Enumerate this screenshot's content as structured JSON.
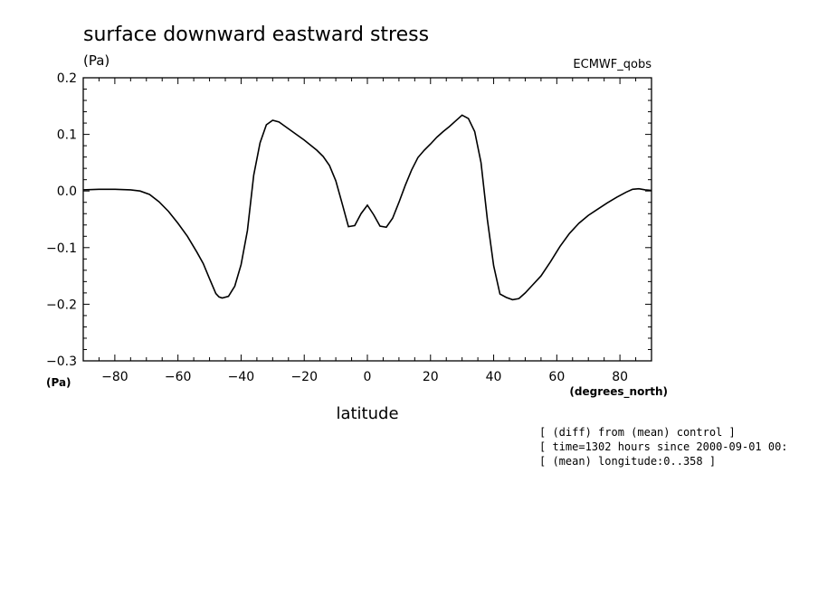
{
  "chart_data": {
    "type": "line",
    "title": "surface downward eastward stress",
    "ylabel_top": "(Pa)",
    "ylabel_bottom": "(Pa)",
    "source_label": "ECMWF_qobs",
    "xlabel": "latitude",
    "xunits": "(degrees_north)",
    "xlim": [
      -90,
      90
    ],
    "ylim": [
      -0.3,
      0.2
    ],
    "xticks": [
      -80,
      -60,
      -40,
      -20,
      0,
      20,
      40,
      60,
      80
    ],
    "xtick_labels": [
      "−80",
      "−60",
      "−40",
      "−20",
      "0",
      "20",
      "40",
      "60",
      "80"
    ],
    "yticks": [
      -0.3,
      -0.2,
      -0.1,
      0.0,
      0.1,
      0.2
    ],
    "ytick_labels": [
      "−0.3",
      "−0.2",
      "−0.1",
      "0.0",
      "0.1",
      "0.2"
    ],
    "series": [
      {
        "x": [
          -90,
          -85,
          -80,
          -75,
          -72,
          -69,
          -66,
          -63,
          -60,
          -57,
          -54,
          -52,
          -50,
          -48,
          -47,
          -46,
          -44,
          -42,
          -40,
          -38,
          -36,
          -34,
          -32,
          -30,
          -28,
          -26,
          -24,
          -22,
          -20,
          -18,
          -16,
          -14,
          -12,
          -10,
          -8,
          -6,
          -4,
          -2,
          0,
          2,
          4,
          6,
          8,
          10,
          12,
          14,
          16,
          18,
          20,
          22,
          24,
          26,
          28,
          30,
          32,
          34,
          36,
          38,
          40,
          42,
          44,
          46,
          48,
          50,
          52,
          55,
          58,
          61,
          64,
          67,
          70,
          73,
          76,
          79,
          82,
          84,
          86,
          88,
          90
        ],
        "y": [
          0.002,
          0.003,
          0.003,
          0.002,
          0.0,
          -0.006,
          -0.019,
          -0.036,
          -0.057,
          -0.08,
          -0.108,
          -0.128,
          -0.155,
          -0.181,
          -0.187,
          -0.189,
          -0.186,
          -0.168,
          -0.13,
          -0.07,
          0.028,
          0.085,
          0.117,
          0.125,
          0.122,
          0.114,
          0.106,
          0.098,
          0.09,
          0.081,
          0.072,
          0.061,
          0.045,
          0.018,
          -0.022,
          -0.063,
          -0.061,
          -0.04,
          -0.025,
          -0.042,
          -0.062,
          -0.064,
          -0.048,
          -0.02,
          0.01,
          0.037,
          0.059,
          0.072,
          0.083,
          0.095,
          0.105,
          0.114,
          0.124,
          0.134,
          0.128,
          0.105,
          0.05,
          -0.05,
          -0.132,
          -0.182,
          -0.188,
          -0.192,
          -0.19,
          -0.18,
          -0.168,
          -0.15,
          -0.125,
          -0.098,
          -0.075,
          -0.057,
          -0.043,
          -0.032,
          -0.021,
          -0.011,
          -0.002,
          0.003,
          0.004,
          0.002,
          0.001
        ]
      }
    ]
  },
  "notes": [
    "[ (diff) from (mean) control ]",
    "[ time=1302 hours since 2000-09-01 00:",
    "[ (mean) longitude:0..358 ]"
  ]
}
